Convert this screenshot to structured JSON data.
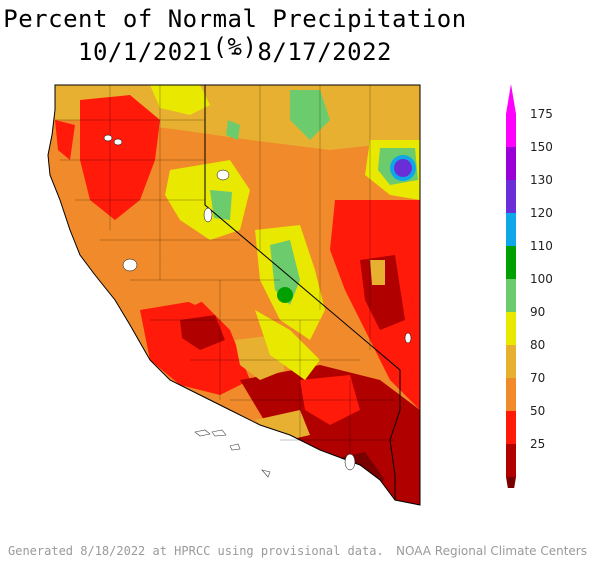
{
  "title": {
    "line1": "Percent of Normal Precipitation (%)",
    "line2": "10/1/2021 - 8/17/2022"
  },
  "legend": {
    "bins": [
      {
        "label": "175",
        "color": "#ff00ff"
      },
      {
        "label": "150",
        "color": "#9a00d6"
      },
      {
        "label": "130",
        "color": "#6a2ed8"
      },
      {
        "label": "120",
        "color": "#0fa7e8"
      },
      {
        "label": "110",
        "color": "#00a000"
      },
      {
        "label": "100",
        "color": "#6ccb6c"
      },
      {
        "label": "90",
        "color": "#e8e800"
      },
      {
        "label": "80",
        "color": "#e8b030"
      },
      {
        "label": "70",
        "color": "#f08a2a"
      },
      {
        "label": "50",
        "color": "#ff1a0a"
      },
      {
        "label": "25",
        "color": "#b00000"
      }
    ],
    "bottom_color": "#7a0000"
  },
  "footer": {
    "left": "Generated 8/18/2022 at HPRCC using provisional data.",
    "right": "NOAA Regional Climate Centers"
  }
}
